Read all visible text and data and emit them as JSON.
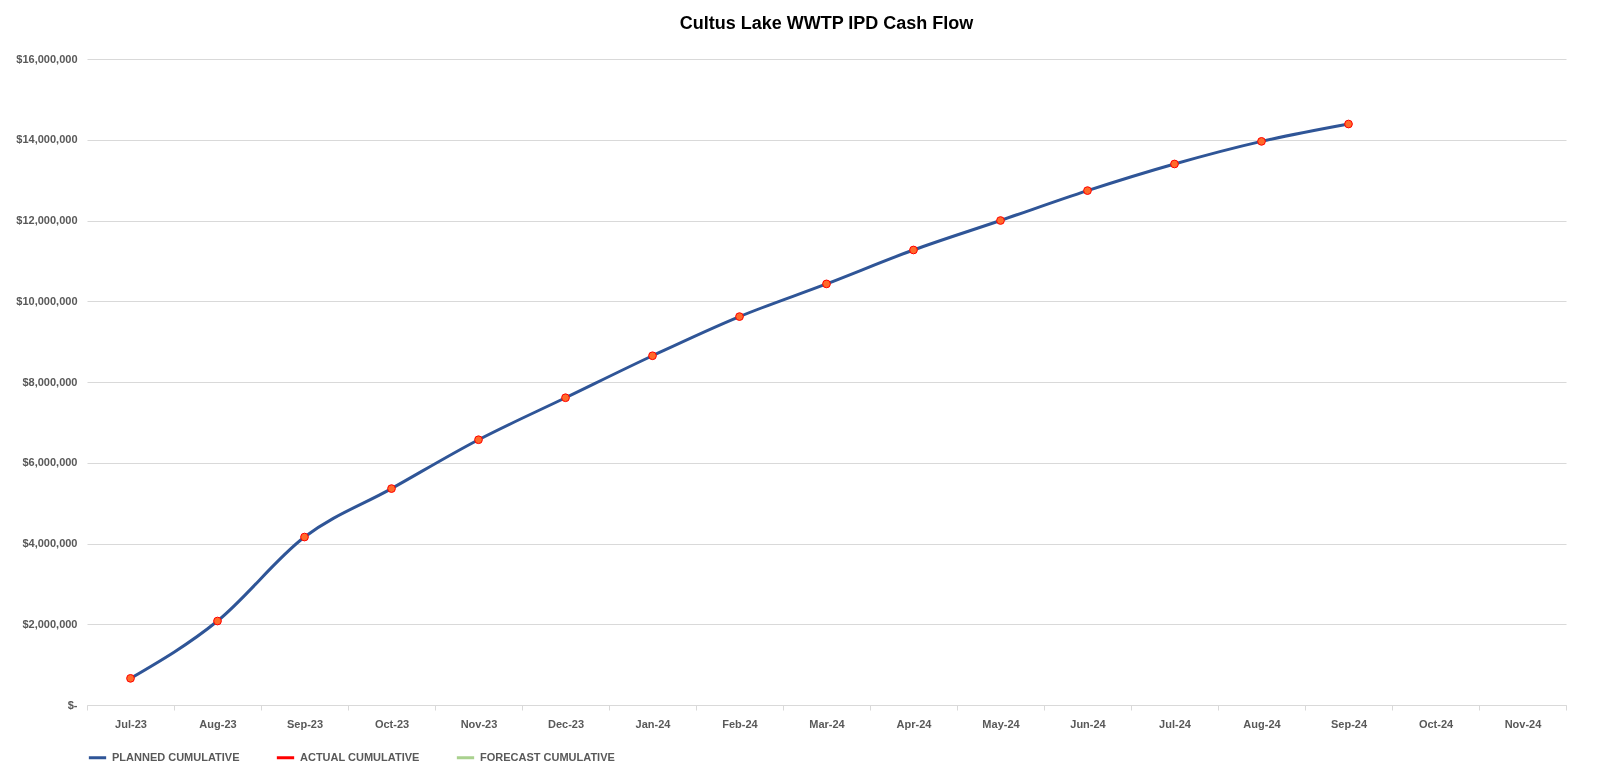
{
  "chart_data": {
    "type": "line",
    "title": "Cultus Lake WWTP IPD Cash Flow",
    "categories": [
      "Jul-23",
      "Aug-23",
      "Sep-23",
      "Oct-23",
      "Nov-23",
      "Dec-23",
      "Jan-24",
      "Feb-24",
      "Mar-24",
      "Apr-24",
      "May-24",
      "Jun-24",
      "Jul-24",
      "Aug-24",
      "Sep-24",
      "Oct-24",
      "Nov-24"
    ],
    "series": [
      {
        "name": "PLANNED CUMULATIVE",
        "color": "#2f5597",
        "values": [
          660000,
          2080000,
          4160000,
          5360000,
          6570000,
          7610000,
          8650000,
          9620000,
          10430000,
          11270000,
          12000000,
          12740000,
          13400000,
          13960000,
          14390000,
          null,
          null
        ]
      },
      {
        "name": "ACTUAL CUMULATIVE",
        "color": "#ff0000",
        "values": [
          null,
          null,
          null,
          null,
          null,
          null,
          null,
          null,
          null,
          null,
          null,
          null,
          null,
          null,
          null,
          null,
          null
        ]
      },
      {
        "name": "FORECAST CUMULATIVE",
        "color": "#a9d18e",
        "values": [
          null,
          null,
          null,
          null,
          null,
          null,
          null,
          null,
          null,
          null,
          null,
          null,
          null,
          null,
          null,
          null,
          null
        ]
      }
    ],
    "ylim": [
      0,
      16000000
    ],
    "yticks": [
      {
        "value": 0,
        "label": "$-"
      },
      {
        "value": 2000000,
        "label": "$2,000,000"
      },
      {
        "value": 4000000,
        "label": "$4,000,000"
      },
      {
        "value": 6000000,
        "label": "$6,000,000"
      },
      {
        "value": 8000000,
        "label": "$8,000,000"
      },
      {
        "value": 10000000,
        "label": "$10,000,000"
      },
      {
        "value": 12000000,
        "label": "$12,000,000"
      },
      {
        "value": 14000000,
        "label": "$14,000,000"
      },
      {
        "value": 16000000,
        "label": "$16,000,000"
      }
    ],
    "grid": "y",
    "legend": "bottom",
    "marker": "circle",
    "line_style": "solid"
  }
}
